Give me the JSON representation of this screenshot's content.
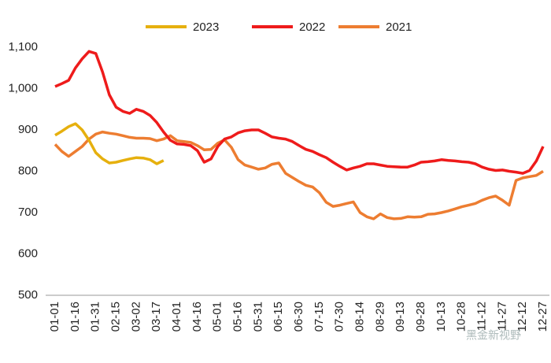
{
  "chart_data": {
    "type": "line",
    "categories": [
      "01-01",
      null,
      null,
      "01-16",
      null,
      null,
      "01-31",
      null,
      null,
      "02-15",
      null,
      null,
      "03-02",
      null,
      null,
      "03-17",
      null,
      null,
      "04-01",
      null,
      null,
      "04-16",
      null,
      null,
      "05-01",
      null,
      null,
      "05-16",
      null,
      null,
      "05-31",
      null,
      null,
      "06-15",
      null,
      null,
      "06-30",
      null,
      null,
      "07-15",
      null,
      null,
      "07-30",
      null,
      null,
      "08-14",
      null,
      null,
      "08-29",
      null,
      null,
      "09-13",
      null,
      null,
      "09-28",
      null,
      null,
      "10-13",
      null,
      null,
      "10-28",
      null,
      null,
      "11-12",
      null,
      null,
      "11-27",
      null,
      null,
      "12-12",
      null,
      null,
      "12-27"
    ],
    "series": [
      {
        "name": "2023",
        "color": "#e6b00e",
        "values": [
          887,
          897,
          908,
          915,
          900,
          875,
          845,
          830,
          820,
          822,
          826,
          830,
          833,
          832,
          828,
          818,
          826,
          null,
          null,
          null,
          null,
          null,
          null,
          null,
          null,
          null,
          null,
          null,
          null,
          null,
          null,
          null,
          null,
          null,
          null,
          null,
          null,
          null,
          null,
          null,
          null,
          null,
          null,
          null,
          null,
          null,
          null,
          null,
          null,
          null,
          null,
          null,
          null,
          null,
          null,
          null,
          null,
          null,
          null,
          null,
          null,
          null,
          null,
          null,
          null,
          null,
          null,
          null,
          null,
          null,
          null,
          null,
          null
        ]
      },
      {
        "name": "2022",
        "color": "#ee1b1b",
        "values": [
          1005,
          1012,
          1020,
          1050,
          1072,
          1090,
          1085,
          1040,
          985,
          955,
          945,
          940,
          950,
          945,
          935,
          918,
          895,
          875,
          866,
          865,
          862,
          850,
          822,
          830,
          860,
          878,
          883,
          893,
          898,
          900,
          900,
          892,
          883,
          880,
          878,
          872,
          862,
          853,
          848,
          840,
          833,
          822,
          812,
          803,
          808,
          812,
          818,
          818,
          815,
          812,
          811,
          810,
          810,
          815,
          822,
          823,
          825,
          828,
          826,
          825,
          823,
          822,
          818,
          810,
          805,
          802,
          803,
          800,
          798,
          795,
          802,
          825,
          860
        ]
      },
      {
        "name": "2021",
        "color": "#ed7d31",
        "values": [
          865,
          848,
          836,
          848,
          860,
          878,
          890,
          895,
          892,
          890,
          886,
          882,
          880,
          880,
          879,
          874,
          878,
          886,
          874,
          872,
          870,
          862,
          852,
          853,
          868,
          876,
          858,
          828,
          815,
          810,
          805,
          808,
          817,
          820,
          795,
          785,
          775,
          766,
          762,
          748,
          725,
          715,
          718,
          722,
          726,
          700,
          690,
          685,
          697,
          688,
          685,
          686,
          690,
          689,
          690,
          696,
          697,
          700,
          704,
          709,
          714,
          718,
          722,
          730,
          736,
          740,
          730,
          718,
          778,
          784,
          787,
          790,
          800
        ]
      }
    ],
    "ylim": [
      500,
      1100
    ],
    "yticks": [
      500,
      600,
      700,
      800,
      900,
      {
        "value": 1000,
        "label": "1,000"
      },
      {
        "value": 1100,
        "label": "1,100"
      }
    ],
    "grid": false,
    "legend": "top",
    "watermark": "黑金新视野"
  }
}
